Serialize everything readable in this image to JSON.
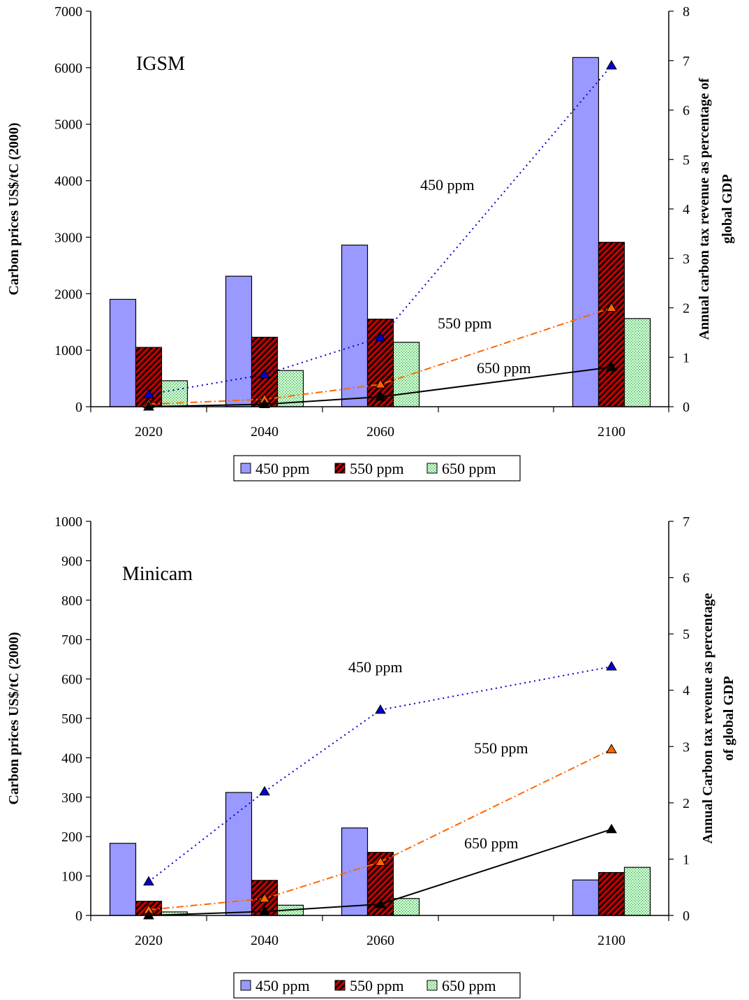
{
  "chart_data": [
    {
      "type": "bar",
      "title": "IGSM",
      "categories": [
        "2020",
        "2040",
        "2060",
        "2100"
      ],
      "ylabel": "Carbon prices US$/tC (2000)",
      "ylim": [
        0,
        7000
      ],
      "yticks": [
        0,
        1000,
        2000,
        3000,
        4000,
        5000,
        6000,
        7000
      ],
      "y2label_lines": [
        "Annual carbon tax revenue as percentage of",
        "global GDP"
      ],
      "y2lim": [
        0,
        8
      ],
      "y2ticks": [
        0,
        1,
        2,
        3,
        4,
        5,
        6,
        7,
        8
      ],
      "grid": false,
      "legend_position": "bottom",
      "series": [
        {
          "name": "450 ppm",
          "axis": "left",
          "kind": "bar",
          "values": [
            1900,
            2310,
            2860,
            6180
          ],
          "color": "#9999ff"
        },
        {
          "name": "550 ppm",
          "axis": "left",
          "kind": "bar",
          "values": [
            1050,
            1230,
            1550,
            2910
          ],
          "color": "#993333"
        },
        {
          "name": "650 ppm",
          "axis": "left",
          "kind": "bar",
          "values": [
            460,
            640,
            1140,
            1560
          ],
          "color": "#ccffcc"
        },
        {
          "name": "450 ppm",
          "axis": "right",
          "kind": "line",
          "values": [
            0.25,
            0.65,
            1.4,
            6.9
          ],
          "color": "#0000cc",
          "style": "dotted"
        },
        {
          "name": "550 ppm",
          "axis": "right",
          "kind": "line",
          "values": [
            0.05,
            0.15,
            0.45,
            2.0
          ],
          "color": "#ff6600",
          "style": "dashdot"
        },
        {
          "name": "650 ppm",
          "axis": "right",
          "kind": "line",
          "values": [
            0.0,
            0.05,
            0.2,
            0.8
          ],
          "color": "#000000",
          "style": "solid"
        }
      ],
      "annotations": [
        "450 ppm",
        "550 ppm",
        "650 ppm"
      ]
    },
    {
      "type": "bar",
      "title": "Minicam",
      "categories": [
        "2020",
        "2040",
        "2060",
        "2100"
      ],
      "ylabel": "Carbon prices US$/tC (2000)",
      "ylim": [
        0,
        1000
      ],
      "yticks": [
        0,
        100,
        200,
        300,
        400,
        500,
        600,
        700,
        800,
        900,
        1000
      ],
      "y2label_lines": [
        "Annual Carbon tax revenue as percentage",
        "of global GDP"
      ],
      "y2lim": [
        0,
        7
      ],
      "y2ticks": [
        0,
        1,
        2,
        3,
        4,
        5,
        6,
        7
      ],
      "grid": false,
      "legend_position": "bottom",
      "series": [
        {
          "name": "450 ppm",
          "axis": "left",
          "kind": "bar",
          "values": [
            183,
            312,
            222,
            90
          ],
          "color": "#9999ff"
        },
        {
          "name": "550 ppm",
          "axis": "left",
          "kind": "bar",
          "values": [
            36,
            89,
            160,
            109
          ],
          "color": "#993333"
        },
        {
          "name": "650 ppm",
          "axis": "left",
          "kind": "bar",
          "values": [
            9,
            26,
            43,
            122
          ],
          "color": "#ccffcc"
        },
        {
          "name": "450 ppm",
          "axis": "right",
          "kind": "line",
          "values": [
            0.6,
            2.2,
            3.65,
            4.42
          ],
          "color": "#0000cc",
          "style": "dotted"
        },
        {
          "name": "550 ppm",
          "axis": "right",
          "kind": "line",
          "values": [
            0.1,
            0.3,
            0.95,
            2.95
          ],
          "color": "#ff6600",
          "style": "dashdot"
        },
        {
          "name": "650 ppm",
          "axis": "right",
          "kind": "line",
          "values": [
            0.0,
            0.07,
            0.2,
            1.53
          ],
          "color": "#000000",
          "style": "solid"
        }
      ],
      "annotations": [
        "450 ppm",
        "550 ppm",
        "650 ppm"
      ]
    }
  ]
}
